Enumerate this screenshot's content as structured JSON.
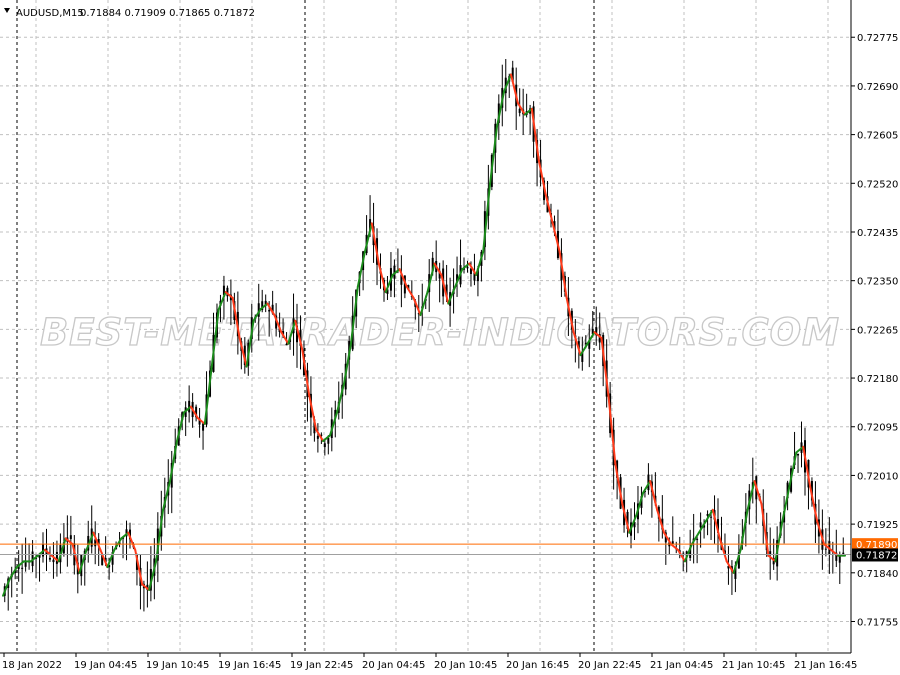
{
  "header": {
    "symbol": "AUDUSD,M15",
    "ohlc": "0.71884 0.71909 0.71865 0.71872"
  },
  "watermark": "BEST-METATRADER-INDICATORS.COM",
  "colors": {
    "grid": "#c0c0c0",
    "candle": "#000000",
    "trend_up": "#1a8a1a",
    "trend_down": "#ff3a1a",
    "bid_line": "#ff6a00",
    "price_box": "#000000"
  },
  "price_lines": {
    "bid": {
      "value": 0.7189,
      "label": "0.71890"
    },
    "current": {
      "value": 0.71872,
      "label": "0.71872"
    }
  },
  "chart_data": {
    "type": "line",
    "y_ticks": [
      "0.72775",
      "0.72690",
      "0.72605",
      "0.72520",
      "0.72435",
      "0.72350",
      "0.72265",
      "0.72180",
      "0.72095",
      "0.72010",
      "0.71925",
      "0.71840",
      "0.71755"
    ],
    "ylim": [
      0.717,
      0.7284
    ],
    "x_ticks": [
      "18 Jan 2022",
      "19 Jan 04:45",
      "19 Jan 10:45",
      "19 Jan 16:45",
      "19 Jan 22:45",
      "20 Jan 04:45",
      "20 Jan 10:45",
      "20 Jan 16:45",
      "20 Jan 22:45",
      "21 Jan 04:45",
      "21 Jan 10:45",
      "21 Jan 16:45"
    ],
    "series": [
      {
        "values": [
          0.718,
          0.7183,
          0.7185,
          0.7186,
          0.7186,
          0.7187,
          0.7188,
          0.7187,
          0.7186,
          0.719,
          0.7189,
          0.7184,
          0.7188,
          0.7191,
          0.7188,
          0.7185,
          0.7188,
          0.719,
          0.7191,
          0.7188,
          0.7182,
          0.7181,
          0.7186,
          0.7195,
          0.72,
          0.7207,
          0.7212,
          0.7213,
          0.7211,
          0.721,
          0.722,
          0.723,
          0.7233,
          0.7232,
          0.7225,
          0.722,
          0.7228,
          0.723,
          0.7231,
          0.7229,
          0.7226,
          0.7224,
          0.7228,
          0.7223,
          0.7215,
          0.7209,
          0.7207,
          0.7208,
          0.7212,
          0.7217,
          0.7224,
          0.7234,
          0.724,
          0.7245,
          0.7238,
          0.7233,
          0.7236,
          0.7237,
          0.7234,
          0.7232,
          0.7229,
          0.7233,
          0.7238,
          0.7236,
          0.7231,
          0.7234,
          0.7237,
          0.7238,
          0.7236,
          0.724,
          0.7252,
          0.7262,
          0.7268,
          0.7271,
          0.7266,
          0.7264,
          0.7265,
          0.7256,
          0.725,
          0.7245,
          0.724,
          0.7232,
          0.7226,
          0.7222,
          0.7224,
          0.7226,
          0.7225,
          0.7215,
          0.7203,
          0.7196,
          0.7191,
          0.7194,
          0.7198,
          0.72,
          0.7195,
          0.7191,
          0.7189,
          0.7188,
          0.7186,
          0.7189,
          0.7191,
          0.7193,
          0.7195,
          0.719,
          0.7186,
          0.7184,
          0.7188,
          0.7195,
          0.72,
          0.7196,
          0.7187,
          0.7186,
          0.7193,
          0.7199,
          0.7205,
          0.7206,
          0.7199,
          0.7193,
          0.7189,
          0.7188,
          0.7187,
          0.7187
        ]
      }
    ]
  }
}
